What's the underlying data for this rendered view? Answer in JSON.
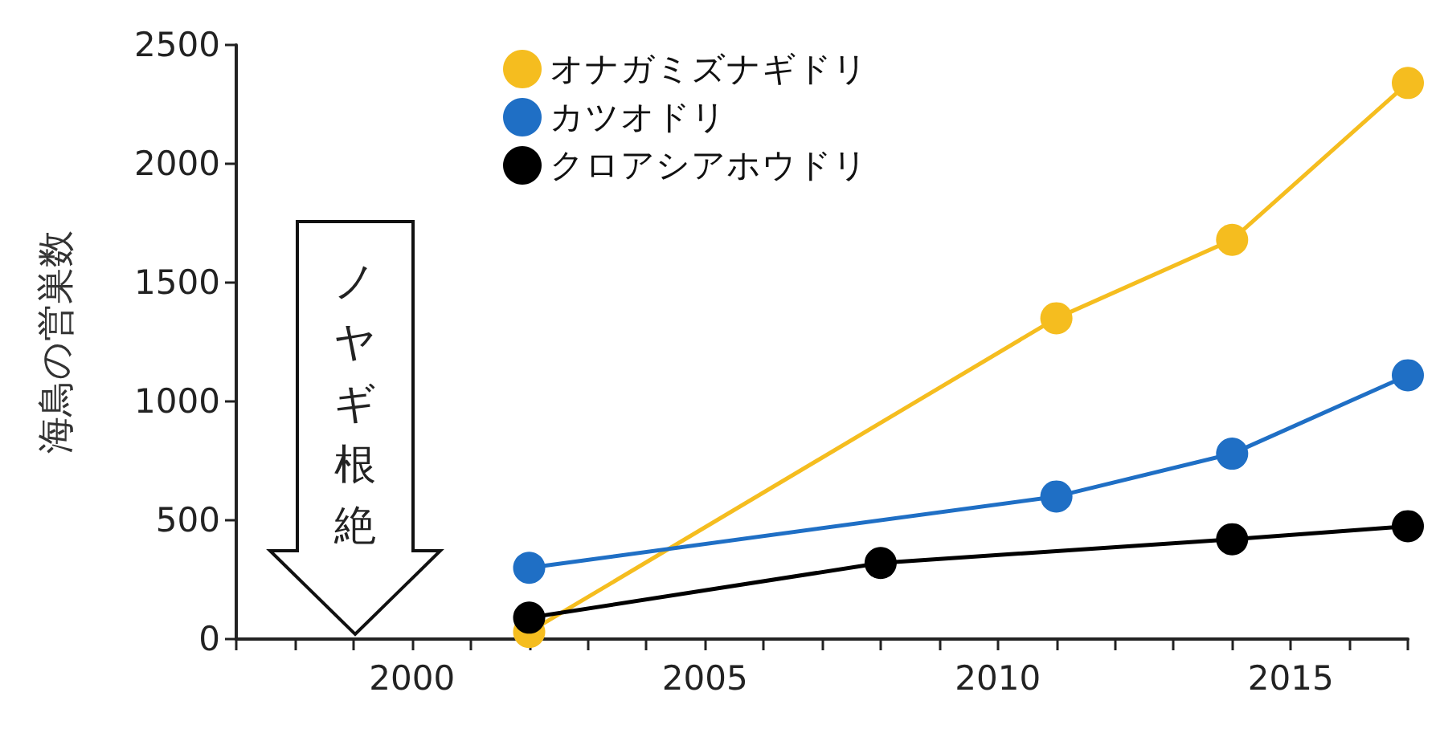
{
  "chart_data": {
    "type": "line",
    "ylabel": "海鳥の営巣数",
    "x": [
      2002,
      2008,
      2011,
      2014,
      2017
    ],
    "series": [
      {
        "name": "オナガミズナギドリ",
        "color": "#f5bd1f",
        "values": [
          30,
          null,
          1350,
          1680,
          2340
        ]
      },
      {
        "name": "カツオドリ",
        "color": "#1f6fc5",
        "values": [
          300,
          null,
          600,
          780,
          1110
        ]
      },
      {
        "name": "クロアシアホウドリ",
        "color": "#000000",
        "values": [
          90,
          320,
          null,
          420,
          475
        ]
      }
    ],
    "xlim": [
      1997,
      2017
    ],
    "xticks": [
      {
        "value": 1997,
        "label": null
      },
      {
        "value": 1998,
        "label": null
      },
      {
        "value": 1999,
        "label": null
      },
      2000,
      {
        "value": 2001,
        "label": null
      },
      {
        "value": 2002,
        "label": null
      },
      {
        "value": 2003,
        "label": null
      },
      {
        "value": 2004,
        "label": null
      },
      2005,
      {
        "value": 2006,
        "label": null
      },
      {
        "value": 2007,
        "label": null
      },
      {
        "value": 2008,
        "label": null
      },
      {
        "value": 2009,
        "label": null
      },
      2010,
      {
        "value": 2011,
        "label": null
      },
      {
        "value": 2012,
        "label": null
      },
      {
        "value": 2013,
        "label": null
      },
      {
        "value": 2014,
        "label": null
      },
      2015,
      {
        "value": 2016,
        "label": null
      },
      {
        "value": 2017,
        "label": null
      }
    ],
    "ylim": [
      0,
      2500
    ],
    "yticks": [
      0,
      500,
      1000,
      1500,
      2000,
      2500
    ],
    "annotations": [
      "ノヤギ根絶"
    ],
    "grid": false,
    "legend": "top left",
    "marker": "circle",
    "line_style": "solid"
  }
}
